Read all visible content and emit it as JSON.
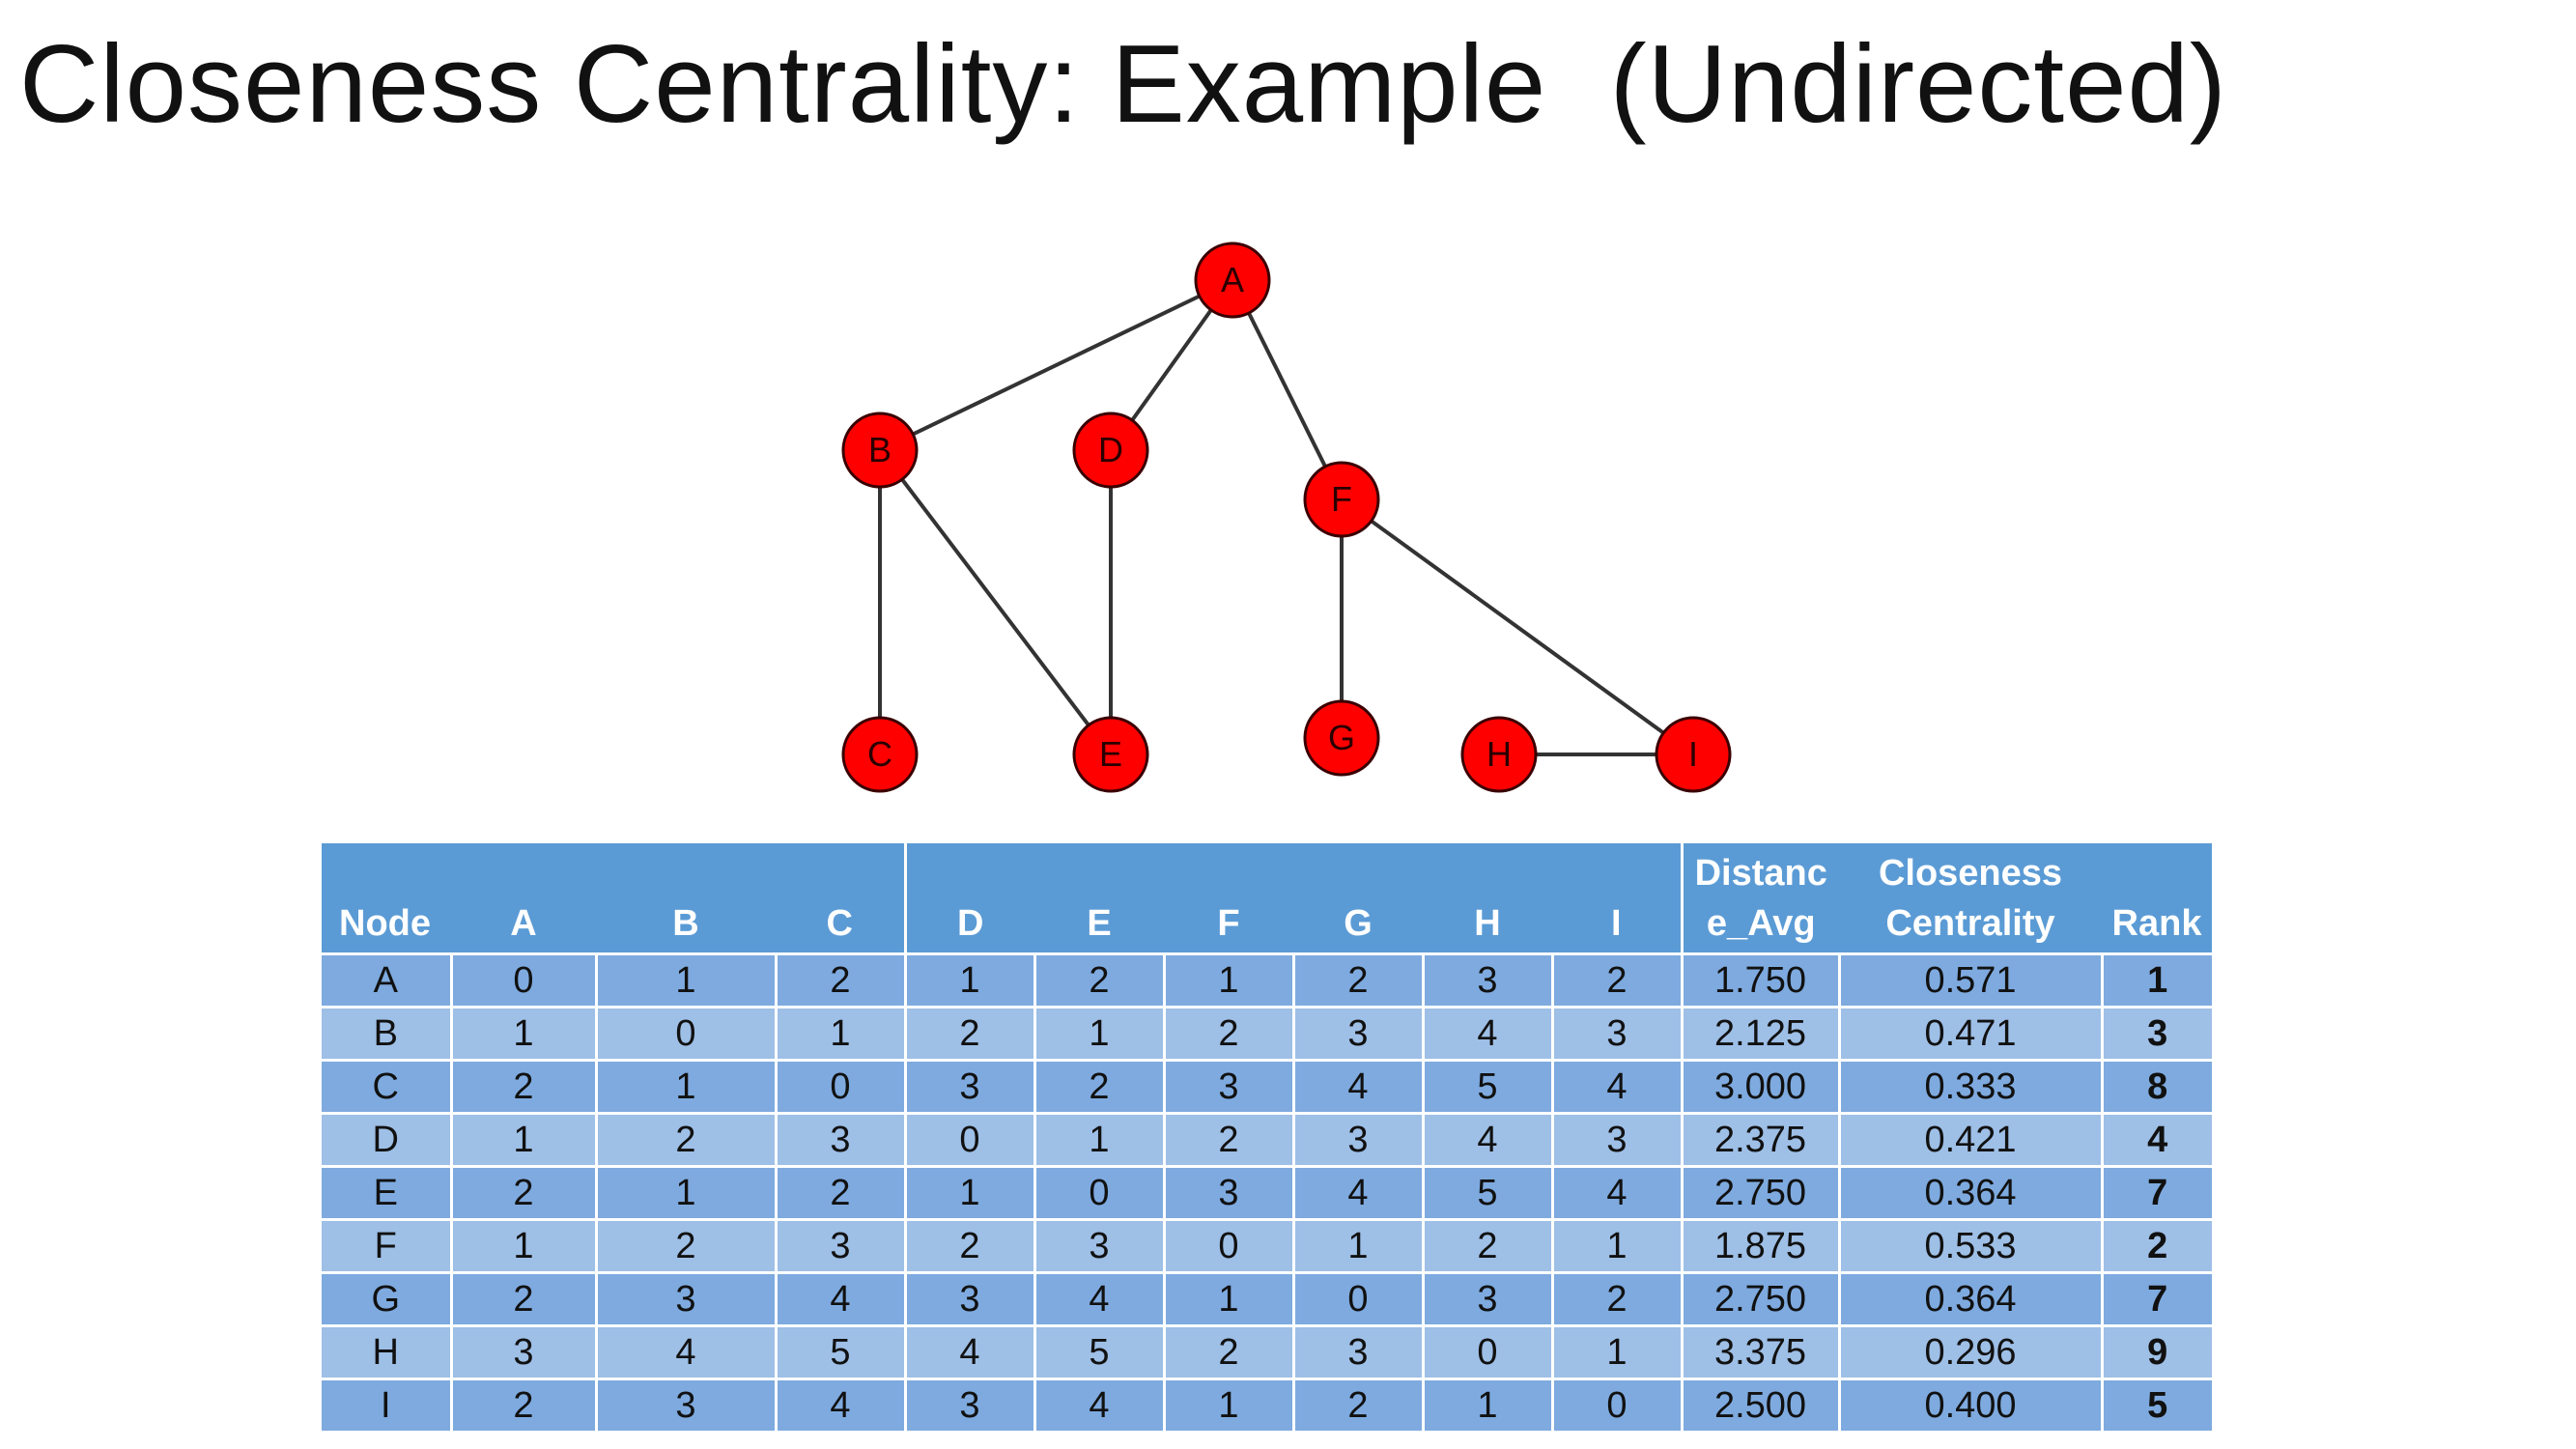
{
  "title": "Closeness Centrality: Example  (Undirected)",
  "graph": {
    "nodes": [
      "A",
      "B",
      "C",
      "D",
      "E",
      "F",
      "G",
      "H",
      "I"
    ],
    "edges": [
      [
        "A",
        "B"
      ],
      [
        "A",
        "D"
      ],
      [
        "A",
        "F"
      ],
      [
        "B",
        "C"
      ],
      [
        "B",
        "E"
      ],
      [
        "D",
        "E"
      ],
      [
        "F",
        "G"
      ],
      [
        "F",
        "I"
      ],
      [
        "H",
        "I"
      ]
    ],
    "node_color": "#ff0000",
    "edge_color": "#333333"
  },
  "table": {
    "headers": {
      "node": "Node",
      "cols": [
        "A",
        "B",
        "C",
        "D",
        "E",
        "F",
        "G",
        "H",
        "I"
      ],
      "dist_line1": "Distanc",
      "dist_line2": "e_Avg",
      "close_line1": "Closeness",
      "close_line2": "Centrality",
      "rank": "Rank"
    },
    "rows": [
      {
        "node": "A",
        "d": [
          "0",
          "1",
          "2",
          "1",
          "2",
          "1",
          "2",
          "3",
          "2"
        ],
        "avg": "1.750",
        "cc": "0.571",
        "rank": "1"
      },
      {
        "node": "B",
        "d": [
          "1",
          "0",
          "1",
          "2",
          "1",
          "2",
          "3",
          "4",
          "3"
        ],
        "avg": "2.125",
        "cc": "0.471",
        "rank": "3"
      },
      {
        "node": "C",
        "d": [
          "2",
          "1",
          "0",
          "3",
          "2",
          "3",
          "4",
          "5",
          "4"
        ],
        "avg": "3.000",
        "cc": "0.333",
        "rank": "8"
      },
      {
        "node": "D",
        "d": [
          "1",
          "2",
          "3",
          "0",
          "1",
          "2",
          "3",
          "4",
          "3"
        ],
        "avg": "2.375",
        "cc": "0.421",
        "rank": "4"
      },
      {
        "node": "E",
        "d": [
          "2",
          "1",
          "2",
          "1",
          "0",
          "3",
          "4",
          "5",
          "4"
        ],
        "avg": "2.750",
        "cc": "0.364",
        "rank": "7"
      },
      {
        "node": "F",
        "d": [
          "1",
          "2",
          "3",
          "2",
          "3",
          "0",
          "1",
          "2",
          "1"
        ],
        "avg": "1.875",
        "cc": "0.533",
        "rank": "2"
      },
      {
        "node": "G",
        "d": [
          "2",
          "3",
          "4",
          "3",
          "4",
          "1",
          "0",
          "3",
          "2"
        ],
        "avg": "2.750",
        "cc": "0.364",
        "rank": "7"
      },
      {
        "node": "H",
        "d": [
          "3",
          "4",
          "5",
          "4",
          "5",
          "2",
          "3",
          "0",
          "1"
        ],
        "avg": "3.375",
        "cc": "0.296",
        "rank": "9"
      },
      {
        "node": "I",
        "d": [
          "2",
          "3",
          "4",
          "3",
          "4",
          "1",
          "2",
          "1",
          "0"
        ],
        "avg": "2.500",
        "cc": "0.400",
        "rank": "5"
      }
    ]
  }
}
